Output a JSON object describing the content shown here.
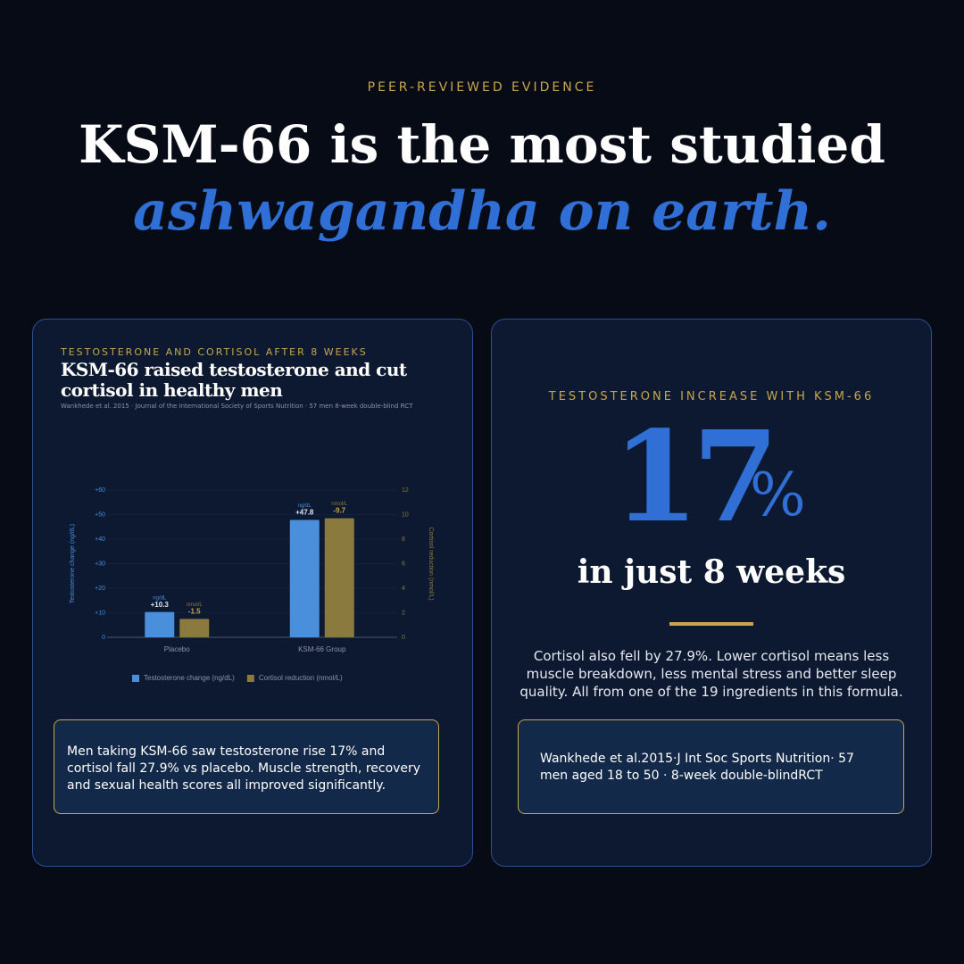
{
  "header": {
    "eyebrow": "PEER-REVIEWED EVIDENCE",
    "title_line1": "KSM-66 is the most studied",
    "title_line2": "ashwagandha on earth."
  },
  "chart_data": {
    "type": "bar",
    "eyebrow": "TESTOSTERONE AND CORTISOL AFTER 8 WEEKS",
    "title": "KSM-66 raised testosterone and cut cortisol in healthy men",
    "source": "Wankhede et al. 2015 · Journal of the International Society of Sports Nutrition · 57 men 8-week double-blind RCT",
    "categories": [
      "Placebo",
      "KSM-66 Group"
    ],
    "series": [
      {
        "name": "Testosterone change (ng/dL)",
        "color": "#4a8fdc",
        "unit": "ng/dL",
        "values": [
          10.3,
          47.8
        ],
        "value_labels": [
          "+10.3",
          "+47.8"
        ]
      },
      {
        "name": "Cortisol reduction (nmol/L)",
        "color": "#8a7a3e",
        "unit": "nmol/L",
        "axis": "y2",
        "values": [
          1.5,
          9.7
        ],
        "value_labels": [
          "-1.5",
          "-9.7"
        ]
      }
    ],
    "ylabel": "Testosterone change (ng/dL)",
    "y2label": "Cortisol reduction (nmol/L)",
    "ylim": [
      0,
      60
    ],
    "yticks": [
      0,
      {
        "value": 10,
        "label": "+10"
      },
      {
        "value": 20,
        "label": "+20"
      },
      {
        "value": 30,
        "label": "+30"
      },
      {
        "value": 40,
        "label": "+40"
      },
      {
        "value": 50,
        "label": "+50"
      },
      {
        "value": 60,
        "label": "+60"
      }
    ],
    "y2lim": [
      0,
      12
    ],
    "y2ticks": [
      0,
      2,
      4,
      6,
      8,
      10,
      12
    ],
    "grid": true,
    "legend": "bottom"
  },
  "left_card": {
    "note": "Men taking KSM-66 saw testosterone rise 17% and cortisol fall 27.9% vs placebo. Muscle strength, recovery and sexual health scores all improved significantly."
  },
  "right_card": {
    "eyebrow": "TESTOSTERONE INCREASE WITH KSM-66",
    "stat": "17",
    "stat_unit": "%",
    "caption": "in just 8 weeks",
    "body": "Cortisol also fell by 27.9%. Lower cortisol means less muscle breakdown, less mental stress and better sleep quality. All from one of the 19 ingredients in this formula.",
    "citation": "Wankhede et al.2015·J Int Soc Sports Nutrition· 57 men aged 18 to 50 · 8-week double-blindRCT"
  }
}
